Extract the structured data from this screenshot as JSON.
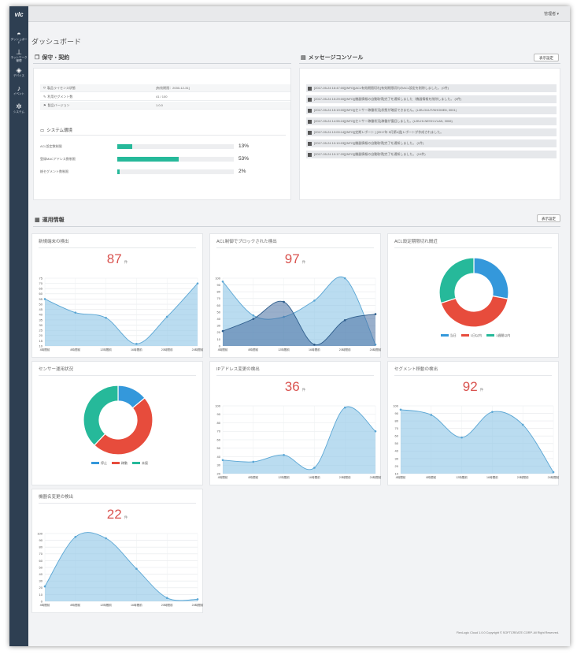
{
  "app": {
    "logo": "vlc",
    "user_menu": "管理者 ▾",
    "page_title": "ダッシュボード",
    "footer": "FlexLogic Cloud 1.0.0 Copyright © SOFTCREATE CORP. All Right Reserved."
  },
  "sidebar": {
    "items": [
      {
        "icon": "dashboard-icon",
        "glyph": "◓",
        "label": "ダッシュボード"
      },
      {
        "icon": "network-icon",
        "glyph": "⊥",
        "label": "ネットワーク管理"
      },
      {
        "icon": "cube-icon",
        "glyph": "◈",
        "label": "デバイス"
      },
      {
        "icon": "bell-icon",
        "glyph": "♪",
        "label": "イベント"
      },
      {
        "icon": "gear-icon",
        "glyph": "✲",
        "label": "システム"
      }
    ]
  },
  "maintenance": {
    "title": "保守・契約",
    "rows": [
      {
        "key": "製品ライセンス状態",
        "value": "[有効期限：2030-12-31]"
      },
      {
        "key": "利用セグメント数",
        "value": "41 / 100"
      },
      {
        "key": "製品バージョン",
        "value": "1.0.0"
      }
    ]
  },
  "system_env": {
    "title": "システム環境",
    "rows": [
      {
        "key": "ACL設定数制限",
        "percent": 13,
        "label": "13%"
      },
      {
        "key": "登録MACアドレス数制限",
        "percent": 53,
        "label": "53%"
      },
      {
        "key": "総セグメント数制限",
        "percent": 2,
        "label": "2%"
      }
    ]
  },
  "console": {
    "title": "メッセージコンソール",
    "settings_label": "表示設定",
    "messages": [
      "[2017-05-24 16:47:00][INFO][ACL有効期限切れ]有効期限切れのACL設定を削除しました。 (0件)",
      "[2017-05-24 15:29:00][INFO][機器情報の自動取得]完了を通知しました（機器情報を削除しました。 (0件)",
      "[2017-05-24 15:19:00][INFO][センサー稼働状況]状態が確認できません。(L2B-OUUT/NHOME8, 3001)",
      "[2017-05-24 14:55:24][INFO][センサー稼働状況]稼働が復旧しました。(L2B-HI-NESH-VLAN, 3006)",
      "[2017-05-24 13:00:14][INFO][定期レポート ] [2017年 5月第4週]レポートが作成されました。",
      "[2017-05-24 10:10:03][INFO][機器情報の自動取得]完了を通知しました。 (1件)",
      "[2017-05-24 10:17:20][INFO][機器情報の自動取得]完了を通知しました。 (10件)"
    ]
  },
  "operations": {
    "title": "運用情報",
    "settings_label": "表示設定"
  },
  "time_labels": [
    "4時間前",
    "8時間前",
    "12時間前",
    "16時間前",
    "20時間前",
    "24時間前"
  ],
  "cards": {
    "new_terminal": {
      "title": "新規端末の検出",
      "count": "87",
      "unit": "件"
    },
    "acl_blocked": {
      "title": "ACL制御でブロックされた検出",
      "count": "97",
      "unit": "件"
    },
    "acl_expiry": {
      "title": "ACL設定期限切れ間近"
    },
    "sensor_status": {
      "title": "センサー運用状況"
    },
    "ip_change": {
      "title": "IPアドレス変更の検出",
      "count": "36",
      "unit": "件"
    },
    "segment_move": {
      "title": "セグメント移動の検出",
      "count": "92",
      "unit": "件"
    },
    "hostname_change": {
      "title": "機器名変更の検出",
      "count": "22",
      "unit": "件"
    }
  },
  "colors": {
    "accent": "#26b99a",
    "count_red": "#d9534f",
    "area_fill": "#b9dcef",
    "area_line": "#6aaed6",
    "blue": "#3498db",
    "red": "#e74c3c",
    "green": "#26b99a",
    "navy": "#2e3f52"
  },
  "chart_data": [
    {
      "type": "area",
      "title": "新規端末の検出",
      "x": [
        "4時間前",
        "8時間前",
        "12時間前",
        "16時間前",
        "20時間前",
        "24時間前"
      ],
      "y_ticks": [
        10,
        15,
        20,
        25,
        30,
        35,
        40,
        45,
        50,
        55,
        60,
        65,
        70,
        75
      ],
      "ylim": [
        10,
        75
      ],
      "series": [
        {
          "values": [
            55,
            42,
            37,
            12,
            38,
            70
          ]
        }
      ]
    },
    {
      "type": "area",
      "title": "ACL制御でブロックされた検出",
      "x": [
        "4時間前",
        "8時間前",
        "12時間前",
        "16時間前",
        "20時間前",
        "24時間前"
      ],
      "y_ticks": [
        0,
        10,
        20,
        30,
        40,
        50,
        60,
        70,
        80,
        90,
        100
      ],
      "ylim": [
        0,
        100
      ],
      "series": [
        {
          "values": [
            95,
            45,
            43,
            67,
            100,
            2
          ]
        },
        {
          "values": [
            22,
            40,
            65,
            2,
            38,
            47
          ]
        }
      ]
    },
    {
      "type": "pie",
      "title": "ACL設定期限切れ間近",
      "legend": [
        "当日",
        "1日以内",
        "1週間以内"
      ],
      "values": [
        28,
        42,
        30
      ]
    },
    {
      "type": "pie",
      "title": "センサー運用状況",
      "legend": [
        "停止",
        "稼動",
        "未接"
      ],
      "values": [
        14,
        48,
        38
      ]
    },
    {
      "type": "area",
      "title": "IPアドレス変更の検出",
      "x": [
        "4時間前",
        "8時間前",
        "12時間前",
        "16時間前",
        "20時間前",
        "24時間前"
      ],
      "y_ticks": [
        20,
        30,
        40,
        50,
        60,
        70,
        80,
        90,
        100
      ],
      "ylim": [
        20,
        100
      ],
      "series": [
        {
          "values": [
            36,
            34,
            42,
            27,
            98,
            70
          ]
        }
      ]
    },
    {
      "type": "area",
      "title": "セグメント移動の検出",
      "x": [
        "4時間前",
        "8時間前",
        "12時間前",
        "16時間前",
        "20時間前",
        "24時間前"
      ],
      "y_ticks": [
        10,
        20,
        30,
        40,
        50,
        60,
        70,
        80,
        90,
        100
      ],
      "ylim": [
        10,
        100
      ],
      "series": [
        {
          "values": [
            95,
            88,
            58,
            92,
            75,
            12
          ]
        }
      ]
    },
    {
      "type": "area",
      "title": "機器名変更の検出",
      "x": [
        "4時間前",
        "8時間前",
        "12時間前",
        "16時間前",
        "20時間前",
        "24時間前"
      ],
      "y_ticks": [
        0,
        10,
        20,
        30,
        40,
        50,
        60,
        70,
        80,
        90,
        100
      ],
      "ylim": [
        0,
        100
      ],
      "series": [
        {
          "values": [
            22,
            95,
            93,
            48,
            5,
            3
          ]
        }
      ]
    }
  ]
}
